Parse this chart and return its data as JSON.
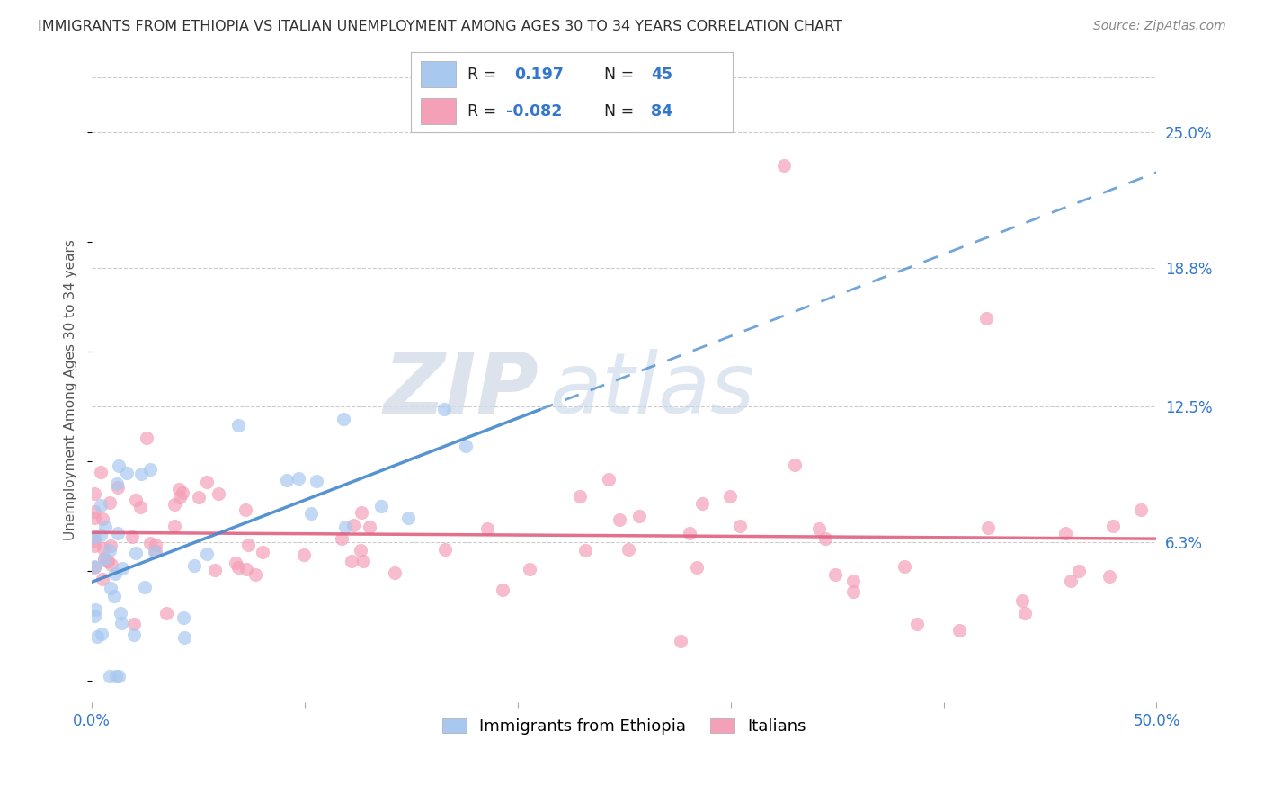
{
  "title": "IMMIGRANTS FROM ETHIOPIA VS ITALIAN UNEMPLOYMENT AMONG AGES 30 TO 34 YEARS CORRELATION CHART",
  "source": "Source: ZipAtlas.com",
  "ylabel": "Unemployment Among Ages 30 to 34 years",
  "xlim": [
    0.0,
    0.5
  ],
  "ylim": [
    -0.01,
    0.275
  ],
  "xtick_positions": [
    0.0,
    0.1,
    0.2,
    0.3,
    0.4,
    0.5
  ],
  "xticklabels": [
    "0.0%",
    "",
    "",
    "",
    "",
    "50.0%"
  ],
  "ytick_vals_right": [
    0.25,
    0.188,
    0.125,
    0.063
  ],
  "ytick_labels_right": [
    "25.0%",
    "18.8%",
    "12.5%",
    "6.3%"
  ],
  "watermark_zip": "ZIP",
  "watermark_atlas": "atlas",
  "eth_color": "#a8c8f0",
  "ita_color": "#f4a0b8",
  "eth_line_color": "#4488cc",
  "ita_line_color": "#e06080",
  "background_color": "#ffffff",
  "grid_color": "#cccccc",
  "title_fontsize": 11.5,
  "source_fontsize": 10,
  "tick_fontsize": 12,
  "ylabel_fontsize": 11,
  "scatter_size": 120,
  "scatter_alpha": 0.7,
  "legend_R1": "0.197",
  "legend_N1": "45",
  "legend_R2": "-0.082",
  "legend_N2": "84",
  "legend_label1": "Immigrants from Ethiopia",
  "legend_label2": "Italians"
}
